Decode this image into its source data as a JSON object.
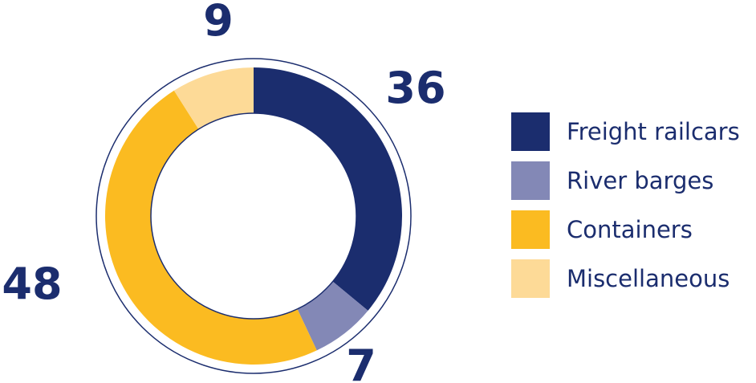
{
  "chart_data": {
    "type": "pie",
    "categories": [
      "Freight railcars",
      "River barges",
      "Containers",
      "Miscellaneous"
    ],
    "values": [
      36,
      7,
      48,
      9
    ],
    "colors": [
      "#1b2d6e",
      "#8388b6",
      "#fbbb21",
      "#fdda97"
    ],
    "label_color": "#1b2d6e",
    "style": "donut",
    "legend": "right",
    "title": ""
  }
}
